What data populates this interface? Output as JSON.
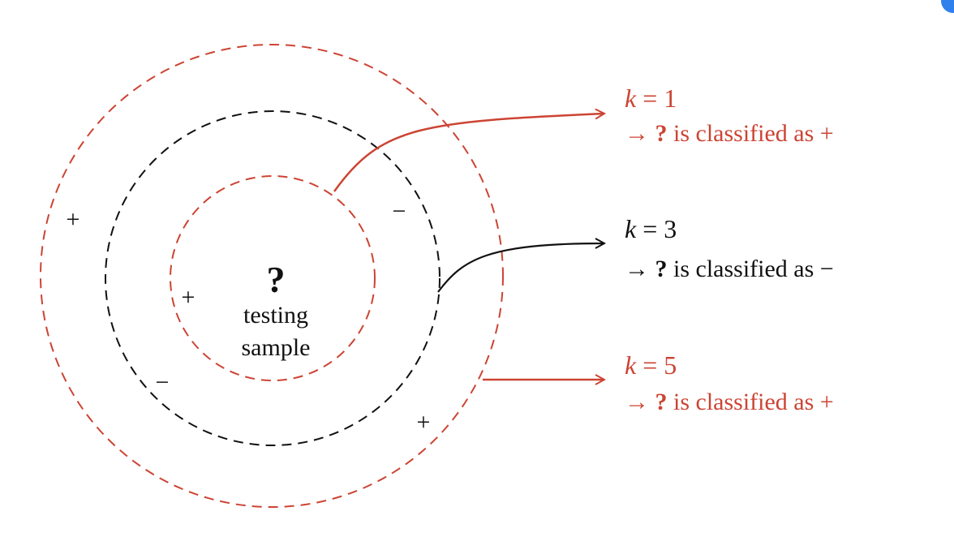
{
  "colors": {
    "red": "#cc4433",
    "black": "#111111"
  },
  "center": {
    "question_mark": "?",
    "line1": "testing",
    "line2": "sample"
  },
  "signs": {
    "plus_outer_left": "+",
    "minus_middle_upper_right": "−",
    "plus_inner_left": "+",
    "minus_middle_lower_left": "−",
    "plus_outer_lower_right": "+"
  },
  "annotations": [
    {
      "k_var": "k",
      "k_eq": " = ",
      "k_val": "1",
      "arrow": "→ ",
      "q": "?",
      "text": " is classified as ",
      "result": "+",
      "color": "red"
    },
    {
      "k_var": "k",
      "k_eq": " = ",
      "k_val": "3",
      "arrow": "→ ",
      "q": "?",
      "text": " is classified as ",
      "result": "−",
      "color": "black"
    },
    {
      "k_var": "k",
      "k_eq": " = ",
      "k_val": "5",
      "arrow": "→ ",
      "q": "?",
      "text": " is classified as ",
      "result": "+",
      "color": "red"
    }
  ]
}
